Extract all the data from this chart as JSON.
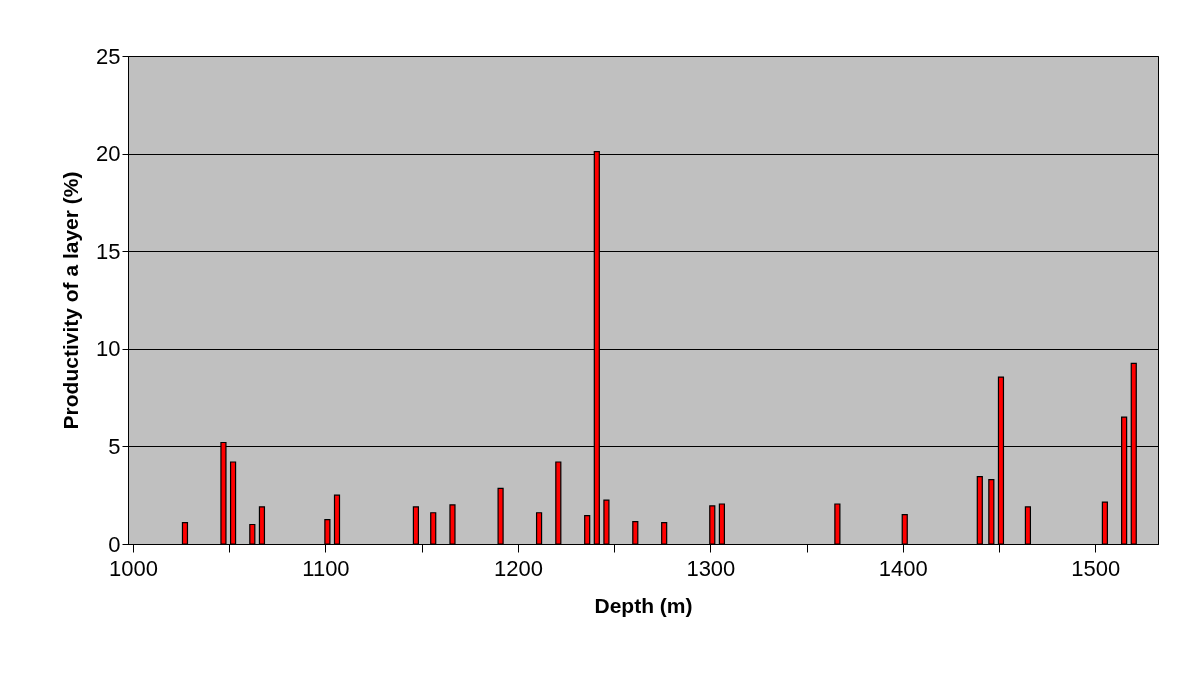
{
  "chart_data": {
    "type": "bar",
    "xlabel": "Depth (m)",
    "ylabel": "Productivity of a layer (%)",
    "x": [
      1027,
      1047,
      1052,
      1062,
      1067,
      1101,
      1106,
      1147,
      1156,
      1166,
      1191,
      1211,
      1221,
      1236,
      1241,
      1246,
      1261,
      1276,
      1301,
      1306,
      1366,
      1401,
      1440,
      1446,
      1451,
      1465,
      1505,
      1515,
      1520
    ],
    "series": [
      {
        "color": "#ff0000",
        "values": [
          1.1,
          5.2,
          4.2,
          1.0,
          1.9,
          1.25,
          2.5,
          1.9,
          1.6,
          2.0,
          2.85,
          1.6,
          4.2,
          1.45,
          20.1,
          2.25,
          1.15,
          1.1,
          1.95,
          2.05,
          2.05,
          1.5,
          3.45,
          3.3,
          8.55,
          1.9,
          2.15,
          6.5,
          9.25
        ]
      }
    ],
    "xlim": [
      1000,
      1530
    ],
    "ylim": [
      0,
      25
    ],
    "xticks": [
      1000,
      {
        "value": 1050,
        "label": null
      },
      1100,
      {
        "value": 1150,
        "label": null
      },
      1200,
      {
        "value": 1250,
        "label": null
      },
      1300,
      {
        "value": 1350,
        "label": null
      },
      1400,
      {
        "value": 1450,
        "label": null
      },
      1500
    ],
    "yticks": [
      0,
      5,
      10,
      15,
      20,
      25
    ],
    "grid": "y"
  }
}
